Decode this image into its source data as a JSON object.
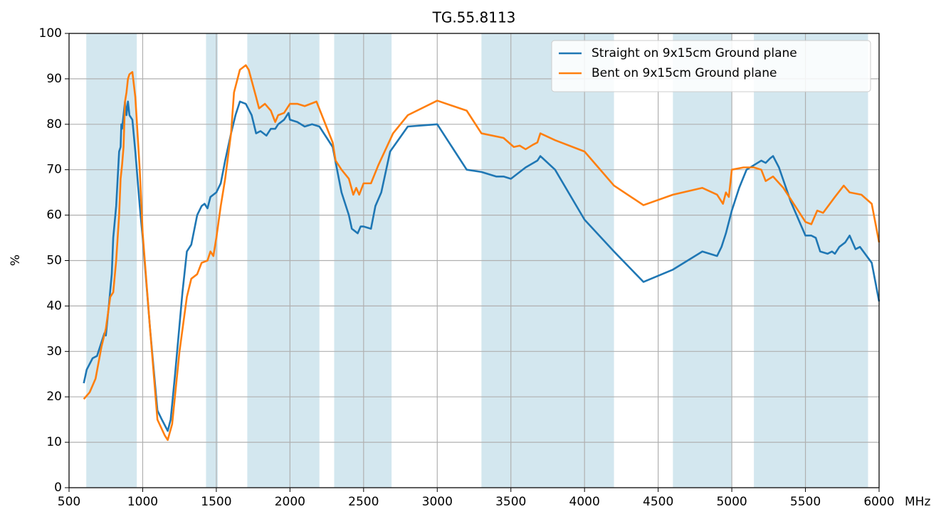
{
  "chart_data": {
    "type": "line",
    "title": "TG.55.8113",
    "xlabel": "MHz",
    "ylabel": "%",
    "xlim": [
      500,
      6000
    ],
    "xticks": [
      500,
      1000,
      1500,
      2000,
      2500,
      3000,
      3500,
      4000,
      4500,
      5000,
      5500,
      6000
    ],
    "ylim": [
      0,
      100
    ],
    "yticks": [
      0,
      10,
      20,
      30,
      40,
      50,
      60,
      70,
      80,
      90,
      100
    ],
    "grid": true,
    "legend": "upper right",
    "bands": [
      [
        617,
        960
      ],
      [
        1430,
        1510
      ],
      [
        1710,
        2200
      ],
      [
        2300,
        2690
      ],
      [
        3300,
        4200
      ],
      [
        4600,
        5000
      ],
      [
        5150,
        5925
      ]
    ],
    "band_color": "#d3e7ef",
    "series": [
      {
        "name": "Straight on 9x15cm Ground plane",
        "color": "#1f77b4",
        "x": [
          600,
          620,
          660,
          690,
          720,
          740,
          750,
          770,
          790,
          800,
          820,
          830,
          840,
          850,
          855,
          860,
          870,
          880,
          890,
          900,
          910,
          930,
          950,
          980,
          1000,
          1050,
          1100,
          1130,
          1170,
          1190,
          1220,
          1270,
          1300,
          1330,
          1370,
          1400,
          1420,
          1440,
          1460,
          1500,
          1530,
          1560,
          1600,
          1630,
          1660,
          1700,
          1740,
          1770,
          1800,
          1840,
          1870,
          1900,
          1920,
          1960,
          1990,
          2000,
          2050,
          2100,
          2150,
          2200,
          2290,
          2350,
          2400,
          2420,
          2440,
          2460,
          2480,
          2500,
          2550,
          2580,
          2620,
          2680,
          2800,
          3000,
          3200,
          3300,
          3400,
          3450,
          3500,
          3600,
          3680,
          3700,
          3800,
          4000,
          4200,
          4400,
          4600,
          4800,
          4900,
          4930,
          4960,
          5000,
          5050,
          5100,
          5150,
          5200,
          5230,
          5260,
          5280,
          5320,
          5400,
          5500,
          5540,
          5570,
          5600,
          5650,
          5680,
          5700,
          5730,
          5770,
          5800,
          5840,
          5870,
          5950,
          6000
        ],
        "values": [
          23,
          26,
          28.5,
          29,
          32,
          34,
          33.5,
          40,
          47,
          55,
          62,
          68,
          74,
          75,
          80,
          79,
          82,
          85,
          82,
          85,
          82,
          81,
          74,
          62,
          55,
          35,
          17,
          15,
          12.5,
          15,
          25,
          43,
          52,
          53.5,
          60,
          62,
          62.5,
          61.5,
          64,
          65,
          67,
          72,
          78,
          82,
          85,
          84.5,
          82,
          78,
          78.5,
          77.5,
          79,
          79,
          80,
          81,
          82.5,
          81,
          80.5,
          79.5,
          80,
          79.5,
          75,
          65,
          60,
          57,
          56.5,
          56,
          57.5,
          57.5,
          57,
          62,
          65,
          74,
          79.5,
          80,
          70,
          69.5,
          68.5,
          68.5,
          68,
          70.5,
          72,
          73,
          70,
          59,
          52,
          45.3,
          48,
          52,
          51,
          53,
          56,
          61,
          66,
          70,
          71,
          72,
          71.5,
          72.5,
          73,
          70.5,
          63,
          55.5,
          55.5,
          55,
          52,
          51.5,
          52,
          51.5,
          53,
          54,
          55.5,
          52.5,
          53,
          49.5,
          41
        ]
      },
      {
        "name": "Bent on 9x15cm Ground plane",
        "color": "#ff7f0e",
        "x": [
          600,
          640,
          680,
          720,
          750,
          780,
          800,
          820,
          840,
          850,
          860,
          870,
          880,
          890,
          900,
          910,
          930,
          950,
          980,
          1000,
          1050,
          1100,
          1150,
          1170,
          1200,
          1250,
          1300,
          1330,
          1370,
          1400,
          1440,
          1460,
          1480,
          1500,
          1530,
          1560,
          1600,
          1620,
          1660,
          1700,
          1720,
          1770,
          1790,
          1830,
          1870,
          1900,
          1920,
          1960,
          2000,
          2050,
          2100,
          2180,
          2290,
          2310,
          2350,
          2400,
          2430,
          2450,
          2470,
          2500,
          2550,
          2600,
          2700,
          2800,
          3000,
          3200,
          3300,
          3450,
          3520,
          3560,
          3600,
          3650,
          3680,
          3700,
          3800,
          4000,
          4200,
          4400,
          4600,
          4800,
          4900,
          4940,
          4960,
          4980,
          5000,
          5080,
          5150,
          5200,
          5230,
          5280,
          5350,
          5450,
          5500,
          5540,
          5580,
          5620,
          5700,
          5760,
          5800,
          5880,
          5950,
          6000
        ],
        "values": [
          19.5,
          21,
          24,
          31,
          35,
          42,
          43,
          50,
          60,
          68,
          71,
          75,
          85,
          87,
          90,
          91,
          91.5,
          86,
          70,
          56,
          35,
          15,
          11.5,
          10.5,
          14,
          30,
          42,
          46,
          47,
          49.5,
          50,
          52,
          51,
          55,
          62,
          68,
          78,
          87,
          92,
          93,
          92,
          86,
          83.5,
          84.5,
          83,
          80.5,
          82,
          82.5,
          84.5,
          84.5,
          84,
          85,
          76,
          72,
          70,
          68,
          64.5,
          66,
          64.5,
          67,
          67,
          71,
          78,
          82,
          85.2,
          83,
          78,
          77,
          75,
          75.3,
          74.5,
          75.5,
          76,
          78,
          76.5,
          74,
          66.5,
          62.2,
          64.5,
          66,
          64.5,
          62.5,
          65,
          64,
          70,
          70.5,
          70.5,
          70,
          67.5,
          68.5,
          66,
          61,
          58.5,
          58,
          61,
          60.5,
          64,
          66.5,
          65,
          64.5,
          62.5,
          54
        ]
      }
    ]
  }
}
